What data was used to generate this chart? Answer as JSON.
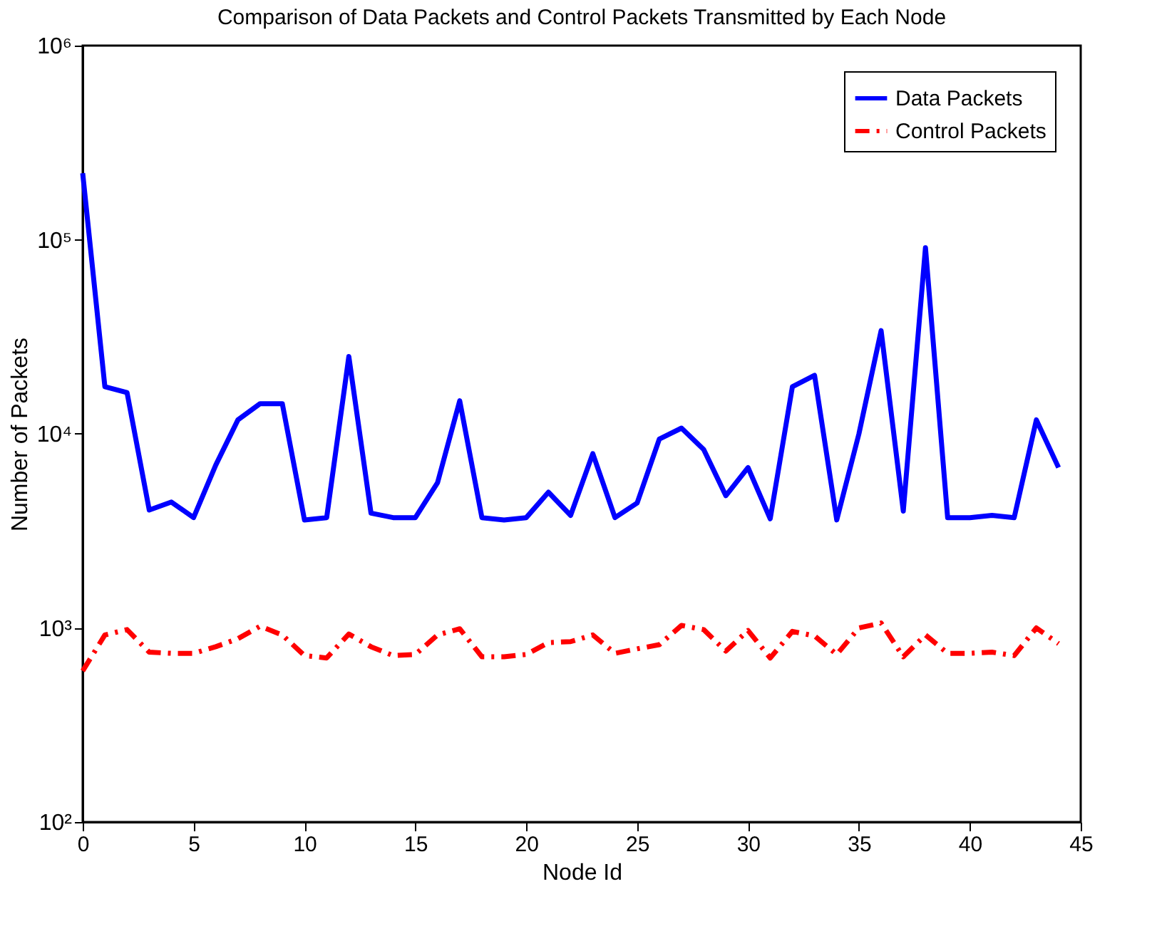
{
  "chart_data": {
    "type": "line",
    "title": "Comparison of Data Packets and Control Packets Transmitted by Each Node",
    "xlabel": "Node Id",
    "ylabel": "Number of Packets",
    "x": [
      0,
      1,
      2,
      3,
      4,
      5,
      6,
      7,
      8,
      9,
      10,
      11,
      12,
      13,
      14,
      15,
      16,
      17,
      18,
      19,
      20,
      21,
      22,
      23,
      24,
      25,
      26,
      27,
      28,
      29,
      30,
      31,
      32,
      33,
      34,
      35,
      36,
      37,
      38,
      39,
      40,
      41,
      42,
      43,
      44
    ],
    "series": [
      {
        "name": "Data Packets",
        "color": "#0000ff",
        "line_style": "solid",
        "values": [
          220000,
          17500,
          16300,
          4050,
          4450,
          3700,
          6900,
          11800,
          14300,
          14300,
          3600,
          3700,
          25000,
          3900,
          3700,
          3700,
          5600,
          14800,
          3700,
          3600,
          3700,
          5000,
          3800,
          7900,
          3700,
          4400,
          9400,
          10700,
          8300,
          4800,
          6700,
          3650,
          17500,
          20000,
          3600,
          10000,
          34000,
          4000,
          91000,
          3700,
          3700,
          3800,
          3700,
          11800,
          6700
        ]
      },
      {
        "name": "Control Packets",
        "color": "#ff0000",
        "line_style": "dashed",
        "values": [
          600,
          920,
          980,
          750,
          740,
          740,
          800,
          880,
          1020,
          920,
          720,
          700,
          930,
          800,
          720,
          730,
          920,
          990,
          710,
          710,
          730,
          840,
          850,
          920,
          740,
          780,
          820,
          1030,
          980,
          760,
          970,
          700,
          960,
          910,
          730,
          1000,
          1060,
          710,
          920,
          740,
          740,
          750,
          720,
          1000,
          830
        ]
      }
    ],
    "xlim": [
      0,
      45
    ],
    "xticks": [
      0,
      5,
      10,
      15,
      20,
      25,
      30,
      35,
      40,
      45
    ],
    "ylim": [
      100,
      1000000
    ],
    "yticks": [
      {
        "value": 100,
        "label": "10²"
      },
      {
        "value": 1000,
        "label": "10³"
      },
      {
        "value": 10000,
        "label": "10⁴"
      },
      {
        "value": 100000,
        "label": "10⁵"
      },
      {
        "value": 1000000,
        "label": "10⁶"
      }
    ],
    "log": "y",
    "grid": false,
    "legend": "top right"
  }
}
